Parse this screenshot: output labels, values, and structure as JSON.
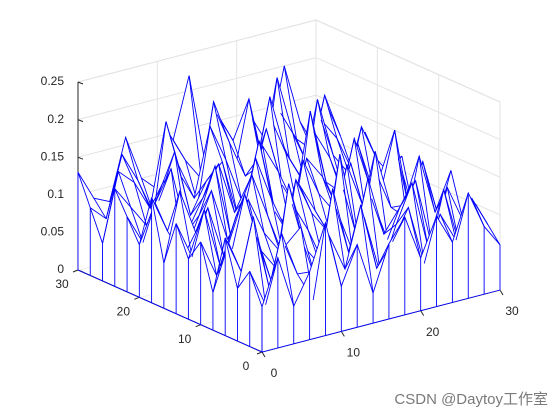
{
  "chart_data": {
    "type": "meshz",
    "x": [
      0,
      2,
      4,
      6,
      8,
      10,
      12,
      14,
      16,
      18,
      20,
      22,
      24,
      26,
      28,
      30
    ],
    "y": [
      0,
      2,
      4,
      6,
      8,
      10,
      12,
      14,
      16,
      18,
      20,
      22,
      24,
      26,
      28,
      30
    ],
    "z": [
      [
        0.06,
        0.12,
        0.05,
        0.09,
        0.15,
        0.06,
        0.11,
        0.04,
        0.1,
        0.13,
        0.07,
        0.12,
        0.08,
        0.14,
        0.09,
        0.06
      ],
      [
        0.1,
        0.05,
        0.14,
        0.08,
        0.04,
        0.12,
        0.07,
        0.15,
        0.06,
        0.09,
        0.13,
        0.05,
        0.11,
        0.07,
        0.12,
        0.08
      ],
      [
        0.07,
        0.16,
        0.06,
        0.11,
        0.13,
        0.05,
        0.17,
        0.08,
        0.12,
        0.04,
        0.1,
        0.15,
        0.06,
        0.13,
        0.05,
        0.1
      ],
      [
        0.13,
        0.08,
        0.12,
        0.05,
        0.18,
        0.09,
        0.06,
        0.13,
        0.07,
        0.16,
        0.08,
        0.11,
        0.14,
        0.05,
        0.12,
        0.07
      ],
      [
        0.05,
        0.11,
        0.17,
        0.09,
        0.06,
        0.14,
        0.1,
        0.05,
        0.19,
        0.08,
        0.12,
        0.06,
        0.1,
        0.16,
        0.08,
        0.13
      ],
      [
        0.11,
        0.06,
        0.09,
        0.15,
        0.1,
        0.07,
        0.16,
        0.11,
        0.08,
        0.13,
        0.05,
        0.17,
        0.09,
        0.07,
        0.14,
        0.06
      ],
      [
        0.08,
        0.14,
        0.06,
        0.12,
        0.17,
        0.11,
        0.05,
        0.14,
        0.1,
        0.06,
        0.15,
        0.09,
        0.12,
        0.18,
        0.06,
        0.11
      ],
      [
        0.12,
        0.07,
        0.13,
        0.06,
        0.09,
        0.18,
        0.12,
        0.07,
        0.16,
        0.11,
        0.08,
        0.14,
        0.06,
        0.1,
        0.13,
        0.05
      ],
      [
        0.06,
        0.15,
        0.09,
        0.14,
        0.07,
        0.1,
        0.19,
        0.09,
        0.06,
        0.15,
        0.12,
        0.07,
        0.16,
        0.09,
        0.11,
        0.12
      ],
      [
        0.14,
        0.09,
        0.05,
        0.1,
        0.16,
        0.06,
        0.11,
        0.17,
        0.13,
        0.08,
        0.2,
        0.1,
        0.08,
        0.14,
        0.07,
        0.09
      ],
      [
        0.07,
        0.12,
        0.16,
        0.07,
        0.11,
        0.15,
        0.08,
        0.12,
        0.18,
        0.1,
        0.06,
        0.16,
        0.12,
        0.06,
        0.15,
        0.1
      ],
      [
        0.1,
        0.06,
        0.11,
        0.17,
        0.08,
        0.12,
        0.14,
        0.06,
        0.11,
        0.21,
        0.13,
        0.09,
        0.19,
        0.11,
        0.08,
        0.13
      ],
      [
        0.13,
        0.1,
        0.07,
        0.12,
        0.14,
        0.09,
        0.18,
        0.13,
        0.07,
        0.12,
        0.16,
        0.11,
        0.07,
        0.15,
        0.12,
        0.07
      ],
      [
        0.05,
        0.14,
        0.12,
        0.08,
        0.19,
        0.11,
        0.07,
        0.2,
        0.14,
        0.09,
        0.1,
        0.21,
        0.13,
        0.08,
        0.17,
        0.11
      ],
      [
        0.09,
        0.07,
        0.15,
        0.11,
        0.06,
        0.16,
        0.12,
        0.09,
        0.17,
        0.13,
        0.18,
        0.08,
        0.15,
        0.11,
        0.09,
        0.14
      ],
      [
        0.13,
        0.09,
        0.08,
        0.16,
        0.1,
        0.08,
        0.14,
        0.22,
        0.1,
        0.15,
        0.09,
        0.14,
        0.1,
        0.2,
        0.12,
        0.08
      ]
    ],
    "color": "#0000ff",
    "xlim": [
      0,
      30
    ],
    "ylim": [
      0,
      30
    ],
    "zlim": [
      0,
      0.25
    ],
    "xticks": [
      0,
      10,
      20,
      30
    ],
    "yticks": [
      0,
      10,
      20,
      30
    ],
    "zticks": [
      0,
      0.05,
      0.1,
      0.15,
      0.2,
      0.25
    ],
    "grid": true
  },
  "watermark": "CSDN @Daytoy工作室"
}
